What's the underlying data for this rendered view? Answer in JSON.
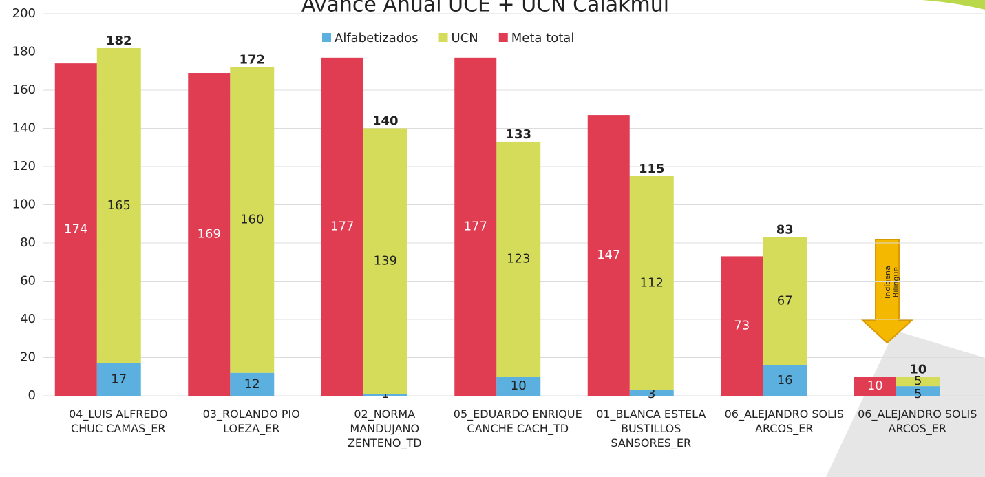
{
  "chart_data": {
    "type": "bar",
    "title": "Avance Anual UCE + UCN Calakmul",
    "categories": [
      "04_LUIS ALFREDO CHUC CAMAS_ER",
      "03_ROLANDO PIO LOEZA_ER",
      "02_NORMA MANDUJANO ZENTENO_TD",
      "05_EDUARDO ENRIQUE CANCHE CACH_TD",
      "01_BLANCA ESTELA BUSTILLOS SANSORES_ER",
      "06_ALEJANDRO SOLIS ARCOS_ER",
      "06_ALEJANDRO SOLIS ARCOS_ER"
    ],
    "series": [
      {
        "name": "Alfabetizados",
        "color": "#5bb0e0",
        "values": [
          17,
          12,
          1,
          10,
          3,
          16,
          5
        ],
        "stack": "uce"
      },
      {
        "name": "UCN",
        "color": "#d4dc5a",
        "values": [
          165,
          160,
          139,
          123,
          112,
          67,
          5
        ],
        "stack": "uce"
      },
      {
        "name": "Meta total",
        "color": "#e03c52",
        "values": [
          174,
          169,
          177,
          177,
          147,
          73,
          10
        ],
        "stack": "meta"
      }
    ],
    "totals": [
      182,
      172,
      140,
      133,
      115,
      83,
      10
    ],
    "annotation": [
      "Indígena",
      "Bilingüe"
    ],
    "ylim": [
      0,
      200
    ],
    "yticks": [
      0,
      20,
      40,
      60,
      80,
      100,
      120,
      140,
      160,
      180,
      200
    ],
    "grid": true
  }
}
